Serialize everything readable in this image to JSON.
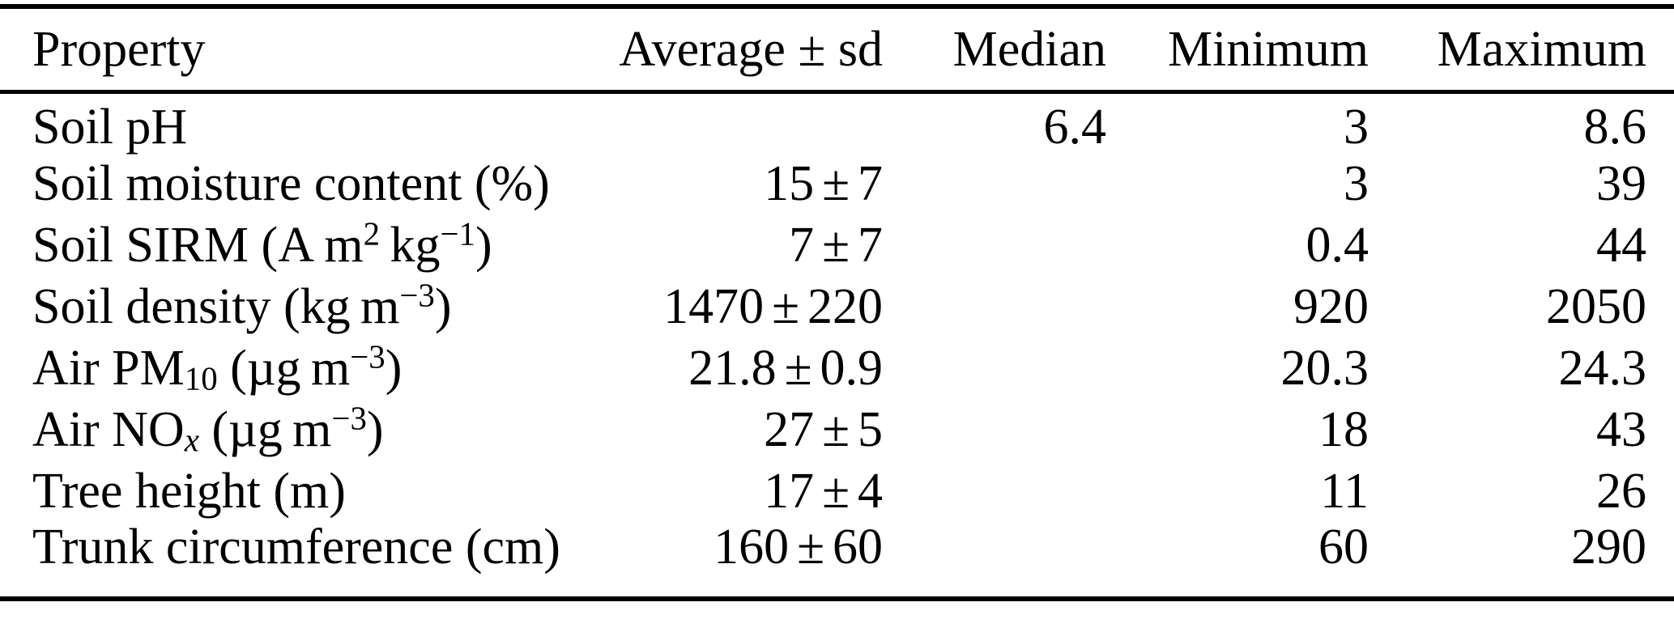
{
  "symbols": {
    "plus_minus": "±"
  },
  "colors": {
    "background": "#ffffff",
    "text": "#000000",
    "rule": "#000000"
  },
  "table": {
    "columns": [
      {
        "label": "Property"
      },
      {
        "label": "Average ± sd"
      },
      {
        "label": "Median"
      },
      {
        "label": "Minimum"
      },
      {
        "label": "Maximum"
      }
    ],
    "rows": [
      {
        "property": [
          {
            "text": "Soil pH"
          }
        ],
        "average": null,
        "median": "6.4",
        "minimum": "3",
        "maximum": "8.6"
      },
      {
        "property": [
          {
            "text": "Soil moisture content (%)"
          }
        ],
        "average": {
          "value": "15",
          "sd": "7"
        },
        "median": "",
        "minimum": "3",
        "maximum": "39"
      },
      {
        "property": [
          {
            "text": "Soil SIRM (A m"
          },
          {
            "text": "2",
            "style": "sup"
          },
          {
            "text": " kg"
          },
          {
            "text": "−1",
            "style": "sup"
          },
          {
            "text": ")"
          }
        ],
        "average": {
          "value": "7",
          "sd": "7"
        },
        "median": "",
        "minimum": "0.4",
        "maximum": "44"
      },
      {
        "property": [
          {
            "text": "Soil density (kg m"
          },
          {
            "text": "−3",
            "style": "sup"
          },
          {
            "text": ")"
          }
        ],
        "average": {
          "value": "1470",
          "sd": "220"
        },
        "median": "",
        "minimum": "920",
        "maximum": "2050"
      },
      {
        "property": [
          {
            "text": "Air PM"
          },
          {
            "text": "10",
            "style": "sub"
          },
          {
            "text": " (µg m"
          },
          {
            "text": "−3",
            "style": "sup"
          },
          {
            "text": ")"
          }
        ],
        "average": {
          "value": "21.8",
          "sd": "0.9"
        },
        "median": "",
        "minimum": "20.3",
        "maximum": "24.3"
      },
      {
        "property": [
          {
            "text": "Air NO"
          },
          {
            "text": "x",
            "style": "sub-italic"
          },
          {
            "text": " (µg m"
          },
          {
            "text": "−3",
            "style": "sup"
          },
          {
            "text": ")"
          }
        ],
        "average": {
          "value": "27",
          "sd": "5"
        },
        "median": "",
        "minimum": "18",
        "maximum": "43"
      },
      {
        "property": [
          {
            "text": "Tree height (m)"
          }
        ],
        "average": {
          "value": "17",
          "sd": "4"
        },
        "median": "",
        "minimum": "11",
        "maximum": "26"
      },
      {
        "property": [
          {
            "text": "Trunk circumference (cm)"
          }
        ],
        "average": {
          "value": "160",
          "sd": "60"
        },
        "median": "",
        "minimum": "60",
        "maximum": "290"
      }
    ]
  }
}
